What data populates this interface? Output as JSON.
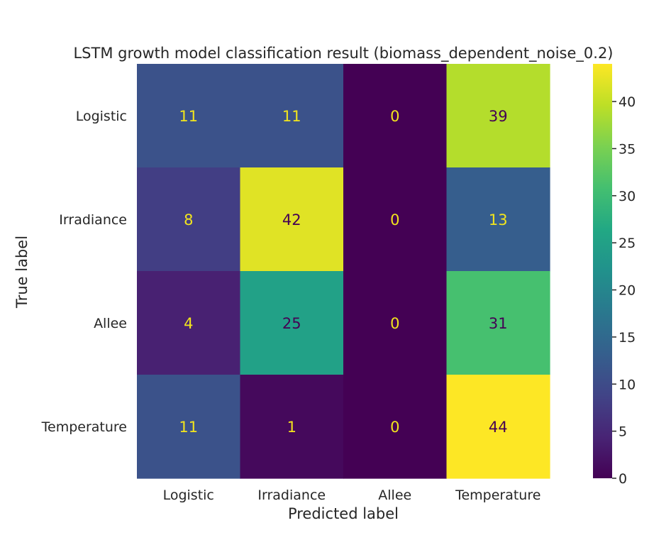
{
  "chart_data": {
    "type": "heatmap",
    "title": "LSTM growth model classification result (biomass_dependent_noise_0.2)",
    "xlabel": "Predicted label",
    "ylabel": "True label",
    "row_labels": [
      "Logistic",
      "Irradiance",
      "Allee",
      "Temperature"
    ],
    "col_labels": [
      "Logistic",
      "Irradiance",
      "Allee",
      "Temperature"
    ],
    "values": [
      [
        11,
        11,
        0,
        39
      ],
      [
        8,
        42,
        0,
        13
      ],
      [
        4,
        25,
        0,
        31
      ],
      [
        11,
        1,
        0,
        44
      ]
    ],
    "colormap": "viridis",
    "colorbar": {
      "range": [
        0,
        44
      ],
      "ticks": [
        0,
        5,
        10,
        15,
        20,
        25,
        30,
        35,
        40
      ],
      "tick_labels": [
        "0",
        "5",
        "10",
        "15",
        "20",
        "25",
        "30",
        "35",
        "40"
      ]
    },
    "grid": false,
    "colors": {
      "text_on_dark": "#f2e51d",
      "text_on_light": "#440154"
    }
  }
}
